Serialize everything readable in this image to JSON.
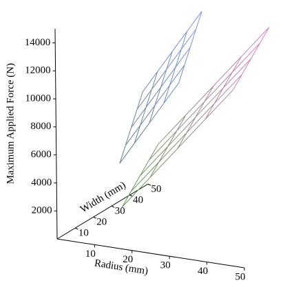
{
  "chart_data": {
    "type": "surface3d",
    "x_label": "Radius (mm)",
    "y_label": "Width (mm)",
    "z_label": "Maximum Applied Force (N)",
    "xlim": [
      0,
      50
    ],
    "ylim": [
      0,
      50
    ],
    "zlim": [
      0,
      15000
    ],
    "xticks": [
      10,
      20,
      30,
      40,
      50
    ],
    "yticks": [
      10,
      20,
      30,
      40,
      50
    ],
    "zticks": [
      2000,
      4000,
      6000,
      8000,
      10000,
      12000,
      14000
    ],
    "surfaces": [
      {
        "colors": [
          "#5a9a48",
          "#e27ad2"
        ],
        "x": [
          15,
          22.5,
          30,
          37.5,
          45
        ],
        "y": [
          5,
          10,
          15,
          20,
          25
        ],
        "z": [
          [
            2500,
            3225,
            3950,
            4675,
            5400
          ],
          [
            4900,
            5625,
            6350,
            7075,
            7800
          ],
          [
            7300,
            8025,
            8750,
            9475,
            10200
          ],
          [
            9700,
            10425,
            11150,
            11875,
            12600
          ],
          [
            12100,
            12825,
            13550,
            14275,
            15000
          ]
        ]
      },
      {
        "colors": [
          "#5f7f7c",
          "#7f94ee"
        ],
        "x": [
          14,
          18,
          22,
          26,
          30
        ],
        "y": [
          6,
          9.25,
          12.5,
          15.75,
          19
        ],
        "z": [
          [
            5500,
            6525,
            7550,
            8575,
            9600
          ],
          [
            7100,
            8125,
            9150,
            10175,
            11200
          ],
          [
            8700,
            9725,
            10750,
            11775,
            12800
          ],
          [
            10300,
            11325,
            12350,
            13375,
            14400
          ],
          [
            11900,
            12925,
            13950,
            14975,
            16000
          ]
        ]
      }
    ]
  }
}
